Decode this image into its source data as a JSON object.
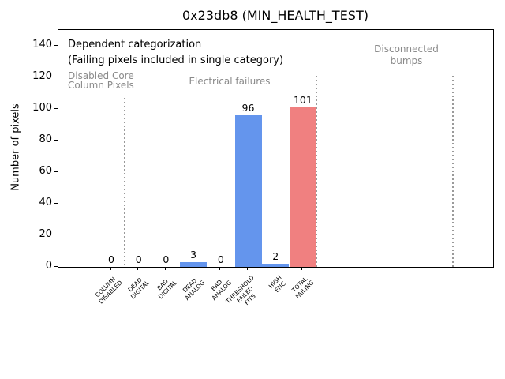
{
  "title": "0x23db8 (MIN_HEALTH_TEST)",
  "ylabel": "Number of pixels",
  "annotations": {
    "dependent_line1": "Dependent categorization",
    "dependent_line2": "(Failing pixels included in single category)",
    "sections": {
      "disabled": "Disabled Core\nColumn Pixels",
      "electrical": "Electrical failures",
      "disconnected": "Disconnected\nbumps"
    }
  },
  "chart_data": {
    "type": "bar",
    "title": "0x23db8 (MIN_HEALTH_TEST)",
    "xlabel": "",
    "ylabel": "Number of pixels",
    "categories": [
      "COLUMN\nDISABLED",
      "DEAD\nDIGITAL",
      "BAD\nDIGITAL",
      "DEAD\nANALOG",
      "BAD\nANALOG",
      "THRESHOLD\nFAILED\nFITS",
      "HIGH\nENC",
      "TOTAL\nFAILING"
    ],
    "values": [
      0,
      0,
      0,
      3,
      0,
      96,
      2,
      101
    ],
    "bar_colors": [
      "#6495ed",
      "#6495ed",
      "#6495ed",
      "#6495ed",
      "#6495ed",
      "#6495ed",
      "#6495ed",
      "#f08080"
    ],
    "yticks": [
      0,
      20,
      40,
      60,
      80,
      100,
      120,
      140
    ],
    "ylim": [
      0,
      150
    ],
    "grid": false,
    "legend": false,
    "section_separator_positions": [
      0.5,
      7.5,
      12.48
    ],
    "section_labels": [
      "Disabled Core Column Pixels",
      "Electrical failures",
      "Disconnected bumps"
    ],
    "value_labels_shown": true,
    "colors": {
      "blue_bar": "#6495ed",
      "red_bar": "#f08080",
      "gray_text": "#8a8a8a",
      "separator": "#9a9a9a"
    }
  }
}
